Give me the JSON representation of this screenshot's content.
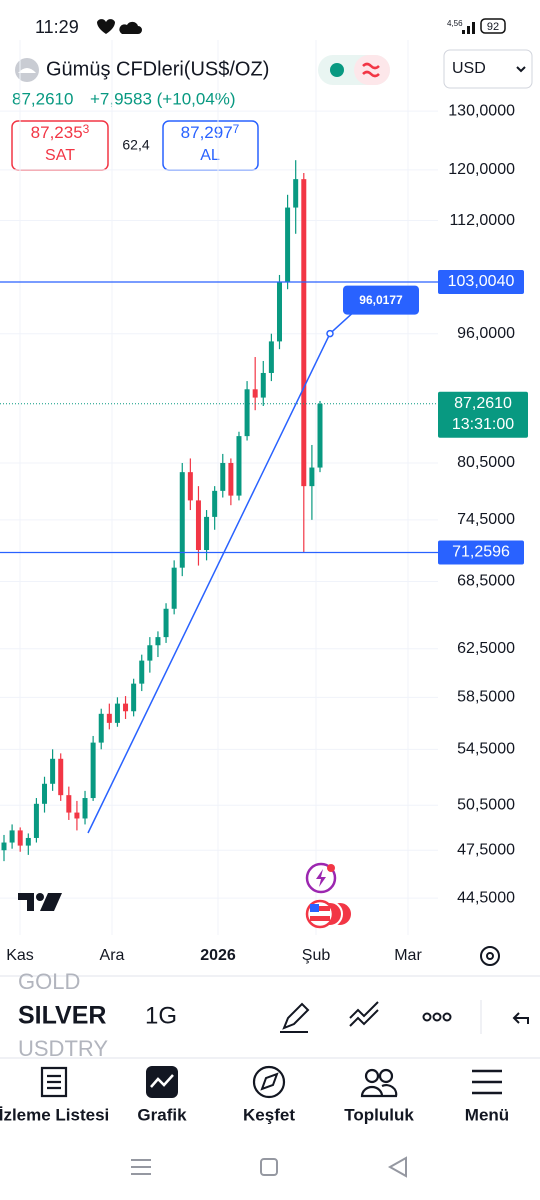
{
  "status_bar": {
    "time": "11:29",
    "network": "4,56",
    "battery": "92"
  },
  "header": {
    "title": "Gümüş CFDleri(US$/OZ)",
    "currency": "USD"
  },
  "quote": {
    "last": "87,2610",
    "change": "+7,9583 (+10,04%)",
    "sell": {
      "price": "87,235",
      "price_small": "3",
      "label": "SAT"
    },
    "spread": "62,4",
    "buy": {
      "price": "87,297",
      "price_small": "7",
      "label": "AL"
    }
  },
  "chart_data": {
    "type": "candlestick",
    "open": [
      47.5,
      48.0,
      48.8,
      47.8,
      48.3,
      50.6,
      52.0,
      53.8,
      51.2,
      50.0,
      49.6,
      51.0,
      55.0,
      57.2,
      56.5,
      58.0,
      57.4,
      59.6,
      61.5,
      62.8,
      63.5,
      66.0,
      69.8,
      79.5,
      76.5,
      71.5,
      74.8,
      77.5,
      80.5,
      77.0,
      83.5,
      89.0,
      88.0,
      91.0,
      95.0,
      103.0,
      114.0,
      118.5,
      78.0,
      80.0
    ],
    "high": [
      48.5,
      49.2,
      49.0,
      48.6,
      51.0,
      52.5,
      54.5,
      54.2,
      51.8,
      50.8,
      51.5,
      55.5,
      57.6,
      58.0,
      58.5,
      58.6,
      60.0,
      62.0,
      63.5,
      64.0,
      66.5,
      70.5,
      80.5,
      81.0,
      78.0,
      75.5,
      78.0,
      81.5,
      81.0,
      84.0,
      90.0,
      93.0,
      92.5,
      96.0,
      104.0,
      116.0,
      121.6,
      119.5,
      82.5,
      87.6
    ],
    "low": [
      46.8,
      47.6,
      47.4,
      47.2,
      48.0,
      50.0,
      51.5,
      50.8,
      49.5,
      48.8,
      49.2,
      50.8,
      54.5,
      56.0,
      56.2,
      56.8,
      57.0,
      59.0,
      60.5,
      61.8,
      63.0,
      65.5,
      69.0,
      75.5,
      70.0,
      70.5,
      73.5,
      76.8,
      76.0,
      76.5,
      83.0,
      86.5,
      87.0,
      90.0,
      94.0,
      102.0,
      110.0,
      71.26,
      74.5,
      79.5
    ],
    "close": [
      48.0,
      48.8,
      47.8,
      48.3,
      50.6,
      52.0,
      53.8,
      51.2,
      50.0,
      49.6,
      51.0,
      55.0,
      57.2,
      56.5,
      58.0,
      57.4,
      59.6,
      61.5,
      62.8,
      63.5,
      66.0,
      69.8,
      79.5,
      76.5,
      71.5,
      74.8,
      77.5,
      80.5,
      77.0,
      83.5,
      89.0,
      88.0,
      91.0,
      95.0,
      103.0,
      114.0,
      118.5,
      78.0,
      80.0,
      87.26
    ],
    "ylim": [
      42.9,
      133.8
    ],
    "log_scale": true,
    "grid": true,
    "yticks": [
      {
        "value": 130,
        "label": "130,0000"
      },
      {
        "value": 120,
        "label": "120,0000"
      },
      {
        "value": 112,
        "label": "112,0000"
      },
      {
        "value": 96,
        "label": "96,0000"
      },
      {
        "value": 80.5,
        "label": "80,5000"
      },
      {
        "value": 74.5,
        "label": "74,5000"
      },
      {
        "value": 68.5,
        "label": "68,5000"
      },
      {
        "value": 62.5,
        "label": "62,5000"
      },
      {
        "value": 58.5,
        "label": "58,5000"
      },
      {
        "value": 54.5,
        "label": "54,5000"
      },
      {
        "value": 50.5,
        "label": "50,5000"
      },
      {
        "value": 47.5,
        "label": "47,5000"
      },
      {
        "value": 44.5,
        "label": "44,5000"
      }
    ],
    "x_labels": [
      "Kas",
      "Ara",
      "2026",
      "Şub",
      "Mar"
    ],
    "up_color": "#089981",
    "down_color": "#f23645",
    "line_color": "#2962ff",
    "price_lines": [
      {
        "value": 103.004,
        "label": "103,0040"
      },
      {
        "value": 71.2596,
        "label": "71,2596"
      }
    ],
    "last_price": {
      "value": 87.261,
      "label": "87,2610",
      "countdown": "13:31:00"
    },
    "trend_line": {
      "value": 96.0177,
      "label": "96,0177"
    }
  },
  "toolbar": {
    "symbols": [
      "GOLD",
      "SILVER",
      "USDTRY"
    ],
    "interval": "1G"
  },
  "nav": [
    "İzleme Listesi",
    "Grafik",
    "Keşfet",
    "Topluluk",
    "Menü"
  ]
}
